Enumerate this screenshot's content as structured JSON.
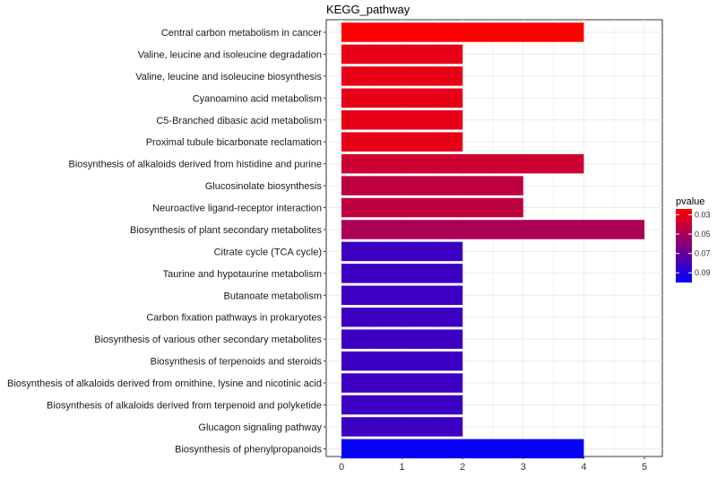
{
  "chart_data": {
    "type": "bar",
    "orientation": "horizontal",
    "title": "KEGG_pathway",
    "xlabel": "",
    "ylabel": "",
    "xlim": [
      0,
      5
    ],
    "x_ticks": [
      0,
      1,
      2,
      3,
      4,
      5
    ],
    "grid": true,
    "categories": [
      "Central carbon metabolism in cancer",
      "Valine, leucine and isoleucine degradation",
      "Valine, leucine and isoleucine biosynthesis",
      "Cyanoamino acid metabolism",
      "C5-Branched dibasic acid metabolism",
      "Proximal tubule bicarbonate reclamation",
      "Biosynthesis of alkaloids derived from histidine and purine",
      "Glucosinolate biosynthesis",
      "Neuroactive ligand-receptor interaction",
      "Biosynthesis of plant secondary metabolites",
      "Citrate cycle (TCA cycle)",
      "Taurine and hypotaurine metabolism",
      "Butanoate metabolism",
      "Carbon fixation pathways in prokaryotes",
      "Biosynthesis of various other secondary metabolites",
      "Biosynthesis of terpenoids and steroids",
      "Biosynthesis of alkaloids derived from ornithine, lysine and nicotinic acid",
      "Biosynthesis of alkaloids derived from terpenoid and polyketide",
      "Glucagon signaling pathway",
      "Biosynthesis of phenylpropanoids"
    ],
    "values": [
      4,
      2,
      2,
      2,
      2,
      2,
      4,
      3,
      3,
      5,
      2,
      2,
      2,
      2,
      2,
      2,
      2,
      2,
      2,
      4
    ],
    "color_values": [
      0.024,
      0.031,
      0.031,
      0.031,
      0.031,
      0.031,
      0.039,
      0.043,
      0.043,
      0.049,
      0.082,
      0.082,
      0.082,
      0.082,
      0.082,
      0.082,
      0.082,
      0.082,
      0.082,
      0.098
    ],
    "legend": {
      "title": "pvalue",
      "position": "right",
      "ticks": [
        0.03,
        0.05,
        0.07,
        0.09
      ],
      "range": [
        0.024,
        0.1
      ],
      "low_color": "#ff0000",
      "high_color": "#0000ff"
    }
  }
}
